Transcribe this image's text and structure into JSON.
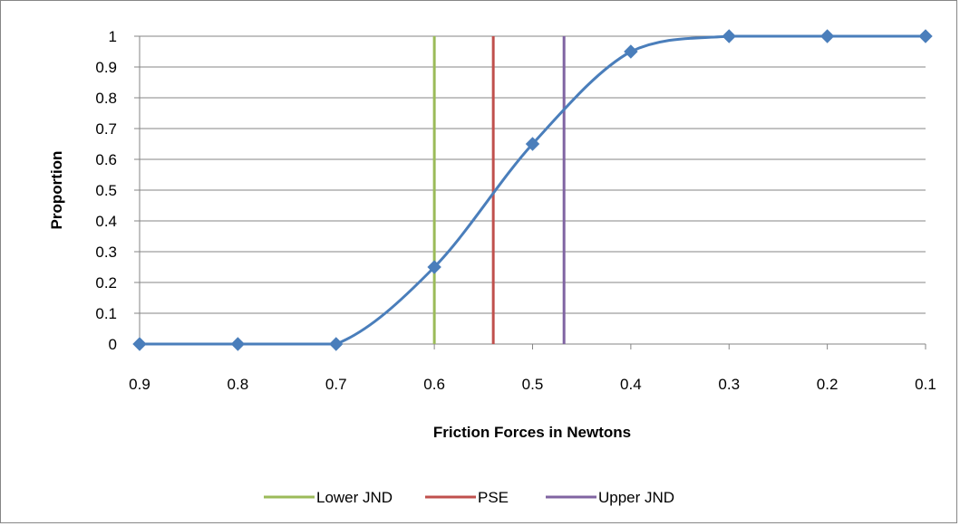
{
  "chart_data": {
    "type": "scatter",
    "title": "",
    "xlabel": "Friction Forces in Newtons",
    "ylabel": "Proportion",
    "x_reversed": true,
    "xlim": [
      0.9,
      0.1
    ],
    "ylim": [
      0,
      1
    ],
    "x_ticks": [
      "0.9",
      "0.8",
      "0.7",
      "0.6",
      "0.5",
      "0.4",
      "0.3",
      "0.2",
      "0.1"
    ],
    "y_ticks": [
      "0",
      "0.1",
      "0.2",
      "0.3",
      "0.4",
      "0.5",
      "0.6",
      "0.7",
      "0.8",
      "0.9",
      "1"
    ],
    "grid": "horizontal",
    "legend_position": "bottom",
    "series": [
      {
        "kind": "scatter-smooth",
        "color": "#4a7ebb",
        "marker": "diamond",
        "x": [
          0.9,
          0.8,
          0.7,
          0.6,
          0.5,
          0.4,
          0.3,
          0.2,
          0.1
        ],
        "y": [
          0,
          0,
          0,
          0.25,
          0.65,
          0.95,
          1,
          1,
          1
        ]
      },
      {
        "name": "Lower JND",
        "kind": "vline",
        "color": "#9bbb59",
        "x": 0.6
      },
      {
        "name": "PSE",
        "kind": "vline",
        "color": "#c0504d",
        "x": 0.54
      },
      {
        "name": "Upper JND",
        "kind": "vline",
        "color": "#8064a2",
        "x": 0.468
      }
    ]
  }
}
